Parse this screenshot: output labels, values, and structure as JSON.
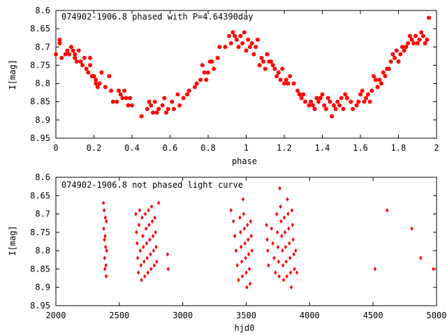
{
  "chart_data": [
    {
      "type": "scatter",
      "title": "074902-1906.8 phased with P=4.64390day",
      "xlabel": "phase",
      "ylabel": "I[mag]",
      "xlim": [
        0,
        2
      ],
      "ylim": [
        8.6,
        8.95
      ],
      "y_inverted": true,
      "xticks": [
        "0",
        "0.2",
        "0.4",
        "0.6",
        "0.8",
        "1",
        "1.2",
        "1.4",
        "1.6",
        "1.8",
        "2"
      ],
      "yticks": [
        "8.6",
        "8.65",
        "8.7",
        "8.75",
        "8.8",
        "8.85",
        "8.9",
        "8.95"
      ],
      "marker": "filled circle",
      "color": "#ff0000",
      "grid": false,
      "points": [
        [
          0.0,
          8.72
        ],
        [
          0.02,
          8.69
        ],
        [
          0.02,
          8.68
        ],
        [
          0.03,
          8.73
        ],
        [
          0.05,
          8.72
        ],
        [
          0.06,
          8.71
        ],
        [
          0.07,
          8.72
        ],
        [
          0.08,
          8.7
        ],
        [
          0.09,
          8.71
        ],
        [
          0.1,
          8.72
        ],
        [
          0.1,
          8.73
        ],
        [
          0.11,
          8.74
        ],
        [
          0.12,
          8.71
        ],
        [
          0.13,
          8.74
        ],
        [
          0.14,
          8.75
        ],
        [
          0.15,
          8.73
        ],
        [
          0.16,
          8.76
        ],
        [
          0.17,
          8.77
        ],
        [
          0.18,
          8.75
        ],
        [
          0.18,
          8.73
        ],
        [
          0.19,
          8.78
        ],
        [
          0.2,
          8.78
        ],
        [
          0.21,
          8.79
        ],
        [
          0.21,
          8.8
        ],
        [
          0.22,
          8.81
        ],
        [
          0.23,
          8.8
        ],
        [
          0.24,
          8.77
        ],
        [
          0.26,
          8.81
        ],
        [
          0.28,
          8.78
        ],
        [
          0.29,
          8.82
        ],
        [
          0.3,
          8.85
        ],
        [
          0.32,
          8.85
        ],
        [
          0.33,
          8.82
        ],
        [
          0.34,
          8.83
        ],
        [
          0.35,
          8.84
        ],
        [
          0.36,
          8.82
        ],
        [
          0.37,
          8.84
        ],
        [
          0.38,
          8.86
        ],
        [
          0.39,
          8.84
        ],
        [
          0.4,
          8.86
        ],
        [
          0.45,
          8.89
        ],
        [
          0.48,
          8.87
        ],
        [
          0.49,
          8.85
        ],
        [
          0.5,
          8.86
        ],
        [
          0.51,
          8.88
        ],
        [
          0.52,
          8.85
        ],
        [
          0.53,
          8.88
        ],
        [
          0.54,
          8.87
        ],
        [
          0.56,
          8.86
        ],
        [
          0.57,
          8.84
        ],
        [
          0.58,
          8.88
        ],
        [
          0.59,
          8.87
        ],
        [
          0.61,
          8.85
        ],
        [
          0.62,
          8.87
        ],
        [
          0.64,
          8.83
        ],
        [
          0.65,
          8.86
        ],
        [
          0.67,
          8.84
        ],
        [
          0.69,
          8.83
        ],
        [
          0.7,
          8.82
        ],
        [
          0.73,
          8.81
        ],
        [
          0.74,
          8.8
        ],
        [
          0.76,
          8.79
        ],
        [
          0.77,
          8.75
        ],
        [
          0.78,
          8.77
        ],
        [
          0.79,
          8.79
        ],
        [
          0.8,
          8.77
        ],
        [
          0.81,
          8.74
        ],
        [
          0.82,
          8.74
        ],
        [
          0.83,
          8.76
        ],
        [
          0.85,
          8.73
        ],
        [
          0.86,
          8.7
        ],
        [
          0.89,
          8.7
        ],
        [
          0.91,
          8.67
        ],
        [
          0.92,
          8.69
        ],
        [
          0.93,
          8.66
        ],
        [
          0.94,
          8.67
        ],
        [
          0.95,
          8.68
        ],
        [
          0.96,
          8.7
        ],
        [
          0.97,
          8.67
        ],
        [
          0.98,
          8.69
        ],
        [
          0.99,
          8.66
        ],
        [
          1.0,
          8.71
        ],
        [
          1.01,
          8.68
        ],
        [
          1.02,
          8.7
        ],
        [
          1.03,
          8.69
        ],
        [
          1.04,
          8.72
        ],
        [
          1.05,
          8.7
        ],
        [
          1.06,
          8.68
        ],
        [
          1.07,
          8.75
        ],
        [
          1.08,
          8.73
        ],
        [
          1.09,
          8.74
        ],
        [
          1.1,
          8.76
        ],
        [
          1.11,
          8.72
        ],
        [
          1.12,
          8.74
        ],
        [
          1.13,
          8.74
        ],
        [
          1.14,
          8.75
        ],
        [
          1.15,
          8.76
        ],
        [
          1.16,
          8.78
        ],
        [
          1.17,
          8.77
        ],
        [
          1.18,
          8.79
        ],
        [
          1.19,
          8.76
        ],
        [
          1.2,
          8.8
        ],
        [
          1.21,
          8.79
        ],
        [
          1.22,
          8.8
        ],
        [
          1.23,
          8.78
        ],
        [
          1.25,
          8.8
        ],
        [
          1.27,
          8.82
        ],
        [
          1.28,
          8.83
        ],
        [
          1.29,
          8.84
        ],
        [
          1.3,
          8.83
        ],
        [
          1.31,
          8.85
        ],
        [
          1.33,
          8.86
        ],
        [
          1.34,
          8.85
        ],
        [
          1.35,
          8.86
        ],
        [
          1.36,
          8.87
        ],
        [
          1.37,
          8.84
        ],
        [
          1.38,
          8.85
        ],
        [
          1.39,
          8.84
        ],
        [
          1.4,
          8.83
        ],
        [
          1.41,
          8.86
        ],
        [
          1.42,
          8.87
        ],
        [
          1.43,
          8.84
        ],
        [
          1.44,
          8.85
        ],
        [
          1.45,
          8.89
        ],
        [
          1.46,
          8.86
        ],
        [
          1.47,
          8.87
        ],
        [
          1.48,
          8.85
        ],
        [
          1.49,
          8.86
        ],
        [
          1.5,
          8.84
        ],
        [
          1.51,
          8.87
        ],
        [
          1.52,
          8.83
        ],
        [
          1.53,
          8.84
        ],
        [
          1.55,
          8.85
        ],
        [
          1.56,
          8.87
        ],
        [
          1.58,
          8.86
        ],
        [
          1.59,
          8.85
        ],
        [
          1.6,
          8.83
        ],
        [
          1.61,
          8.82
        ],
        [
          1.62,
          8.85
        ],
        [
          1.63,
          8.84
        ],
        [
          1.64,
          8.83
        ],
        [
          1.65,
          8.85
        ],
        [
          1.66,
          8.82
        ],
        [
          1.67,
          8.78
        ],
        [
          1.68,
          8.79
        ],
        [
          1.69,
          8.81
        ],
        [
          1.7,
          8.79
        ],
        [
          1.71,
          8.8
        ],
        [
          1.72,
          8.77
        ],
        [
          1.73,
          8.78
        ],
        [
          1.74,
          8.76
        ],
        [
          1.75,
          8.76
        ],
        [
          1.76,
          8.74
        ],
        [
          1.77,
          8.72
        ],
        [
          1.78,
          8.73
        ],
        [
          1.79,
          8.71
        ],
        [
          1.8,
          8.74
        ],
        [
          1.81,
          8.72
        ],
        [
          1.82,
          8.7
        ],
        [
          1.83,
          8.71
        ],
        [
          1.84,
          8.7
        ],
        [
          1.85,
          8.69
        ],
        [
          1.86,
          8.67
        ],
        [
          1.87,
          8.68
        ],
        [
          1.88,
          8.69
        ],
        [
          1.89,
          8.67
        ],
        [
          1.9,
          8.69
        ],
        [
          1.91,
          8.68
        ],
        [
          1.92,
          8.66
        ],
        [
          1.93,
          8.67
        ],
        [
          1.94,
          8.69
        ],
        [
          1.95,
          8.68
        ],
        [
          1.96,
          8.62
        ]
      ]
    },
    {
      "type": "scatter",
      "title": "074902-1906.8 not phased light curve",
      "xlabel": "hjd0",
      "ylabel": "I[mag]",
      "xlim": [
        2000,
        5000
      ],
      "ylim": [
        8.6,
        8.95
      ],
      "y_inverted": true,
      "xticks": [
        "2000",
        "2500",
        "3000",
        "3500",
        "4000",
        "4500",
        "5000"
      ],
      "yticks": [
        "8.6",
        "8.65",
        "8.7",
        "8.75",
        "8.8",
        "8.85",
        "8.9",
        "8.95"
      ],
      "marker": "diamond",
      "color": "#ff0000",
      "grid": false,
      "points": [
        [
          2375,
          8.67
        ],
        [
          2378,
          8.74
        ],
        [
          2380,
          8.69
        ],
        [
          2382,
          8.77
        ],
        [
          2384,
          8.82
        ],
        [
          2386,
          8.85
        ],
        [
          2388,
          8.76
        ],
        [
          2390,
          8.71
        ],
        [
          2392,
          8.79
        ],
        [
          2394,
          8.84
        ],
        [
          2396,
          8.87
        ],
        [
          2398,
          8.72
        ],
        [
          2400,
          8.8
        ],
        [
          2630,
          8.7
        ],
        [
          2635,
          8.75
        ],
        [
          2640,
          8.78
        ],
        [
          2645,
          8.82
        ],
        [
          2650,
          8.86
        ],
        [
          2655,
          8.73
        ],
        [
          2660,
          8.69
        ],
        [
          2665,
          8.8
        ],
        [
          2670,
          8.84
        ],
        [
          2675,
          8.88
        ],
        [
          2680,
          8.71
        ],
        [
          2685,
          8.76
        ],
        [
          2690,
          8.79
        ],
        [
          2695,
          8.83
        ],
        [
          2700,
          8.87
        ],
        [
          2705,
          8.7
        ],
        [
          2710,
          8.74
        ],
        [
          2715,
          8.78
        ],
        [
          2720,
          8.82
        ],
        [
          2725,
          8.86
        ],
        [
          2730,
          8.69
        ],
        [
          2735,
          8.73
        ],
        [
          2740,
          8.77
        ],
        [
          2745,
          8.81
        ],
        [
          2750,
          8.85
        ],
        [
          2755,
          8.68
        ],
        [
          2760,
          8.72
        ],
        [
          2765,
          8.76
        ],
        [
          2770,
          8.8
        ],
        [
          2775,
          8.84
        ],
        [
          2780,
          8.71
        ],
        [
          2785,
          8.75
        ],
        [
          2790,
          8.79
        ],
        [
          2795,
          8.83
        ],
        [
          2810,
          8.67
        ],
        [
          2880,
          8.81
        ],
        [
          2885,
          8.85
        ],
        [
          3380,
          8.69
        ],
        [
          3400,
          8.72
        ],
        [
          3410,
          8.76
        ],
        [
          3420,
          8.8
        ],
        [
          3430,
          8.84
        ],
        [
          3440,
          8.88
        ],
        [
          3450,
          8.71
        ],
        [
          3455,
          8.75
        ],
        [
          3460,
          8.79
        ],
        [
          3465,
          8.83
        ],
        [
          3470,
          8.87
        ],
        [
          3475,
          8.66
        ],
        [
          3480,
          8.7
        ],
        [
          3485,
          8.74
        ],
        [
          3490,
          8.78
        ],
        [
          3495,
          8.82
        ],
        [
          3500,
          8.86
        ],
        [
          3505,
          8.9
        ],
        [
          3510,
          8.73
        ],
        [
          3515,
          8.77
        ],
        [
          3520,
          8.81
        ],
        [
          3525,
          8.85
        ],
        [
          3530,
          8.89
        ],
        [
          3535,
          8.72
        ],
        [
          3540,
          8.76
        ],
        [
          3545,
          8.8
        ],
        [
          3660,
          8.73
        ],
        [
          3665,
          8.77
        ],
        [
          3670,
          8.8
        ],
        [
          3675,
          8.84
        ],
        [
          3700,
          8.74
        ],
        [
          3710,
          8.78
        ],
        [
          3720,
          8.82
        ],
        [
          3730,
          8.86
        ],
        [
          3740,
          8.7
        ],
        [
          3745,
          8.75
        ],
        [
          3750,
          8.79
        ],
        [
          3755,
          8.83
        ],
        [
          3760,
          8.87
        ],
        [
          3765,
          8.63
        ],
        [
          3770,
          8.68
        ],
        [
          3775,
          8.72
        ],
        [
          3780,
          8.76
        ],
        [
          3785,
          8.8
        ],
        [
          3790,
          8.84
        ],
        [
          3795,
          8.88
        ],
        [
          3800,
          8.71
        ],
        [
          3805,
          8.75
        ],
        [
          3810,
          8.79
        ],
        [
          3815,
          8.83
        ],
        [
          3820,
          8.87
        ],
        [
          3825,
          8.66
        ],
        [
          3830,
          8.7
        ],
        [
          3835,
          8.74
        ],
        [
          3840,
          8.78
        ],
        [
          3845,
          8.82
        ],
        [
          3850,
          8.86
        ],
        [
          3855,
          8.9
        ],
        [
          3860,
          8.69
        ],
        [
          3865,
          8.73
        ],
        [
          3870,
          8.77
        ],
        [
          3875,
          8.81
        ],
        [
          3880,
          8.85
        ],
        [
          3890,
          8.8
        ],
        [
          3900,
          8.86
        ],
        [
          4515,
          8.85
        ],
        [
          4610,
          8.69
        ],
        [
          4805,
          8.74
        ],
        [
          4875,
          8.82
        ],
        [
          4975,
          8.85
        ]
      ]
    }
  ]
}
